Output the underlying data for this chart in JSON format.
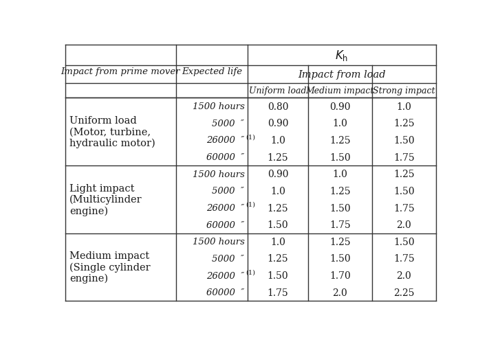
{
  "sections": [
    {
      "prime_mover": "Uniform load\n(Motor, turbine,\nhydraulic motor)",
      "rows": [
        {
          "life": "1500 hours",
          "sup": false,
          "uniform": "0.80",
          "medium": "0.90",
          "strong": "1.0"
        },
        {
          "life": "5000  ″",
          "sup": false,
          "uniform": "0.90",
          "medium": "1.0",
          "strong": "1.25"
        },
        {
          "life": "26000  ″",
          "sup": true,
          "uniform": "1.0",
          "medium": "1.25",
          "strong": "1.50"
        },
        {
          "life": "60000  ″",
          "sup": false,
          "uniform": "1.25",
          "medium": "1.50",
          "strong": "1.75"
        }
      ]
    },
    {
      "prime_mover": "Light impact\n(Multicylinder\nengine)",
      "rows": [
        {
          "life": "1500 hours",
          "sup": false,
          "uniform": "0.90",
          "medium": "1.0",
          "strong": "1.25"
        },
        {
          "life": "5000  ″",
          "sup": false,
          "uniform": "1.0",
          "medium": "1.25",
          "strong": "1.50"
        },
        {
          "life": "26000  ″",
          "sup": true,
          "uniform": "1.25",
          "medium": "1.50",
          "strong": "1.75"
        },
        {
          "life": "60000  ″",
          "sup": false,
          "uniform": "1.50",
          "medium": "1.75",
          "strong": "2.0"
        }
      ]
    },
    {
      "prime_mover": "Medium impact\n(Single cylinder\nengine)",
      "rows": [
        {
          "life": "1500 hours",
          "sup": false,
          "uniform": "1.0",
          "medium": "1.25",
          "strong": "1.50"
        },
        {
          "life": "5000  ″",
          "sup": false,
          "uniform": "1.25",
          "medium": "1.50",
          "strong": "1.75"
        },
        {
          "life": "26000  ″",
          "sup": true,
          "uniform": "1.50",
          "medium": "1.70",
          "strong": "2.0"
        },
        {
          "life": "60000  ″",
          "sup": false,
          "uniform": "1.75",
          "medium": "2.0",
          "strong": "2.25"
        }
      ]
    }
  ],
  "background": "#ffffff",
  "border_color": "#333333",
  "text_color": "#1a1a1a",
  "header_kh": "$K_{\\mathrm{h}}$",
  "header_ifl": "Impact from load",
  "header_prime": "Impact from prime mover",
  "header_life": "Expected life",
  "col3": "Uniform load",
  "col4": "Medium impact",
  "col5": "Strong impact"
}
